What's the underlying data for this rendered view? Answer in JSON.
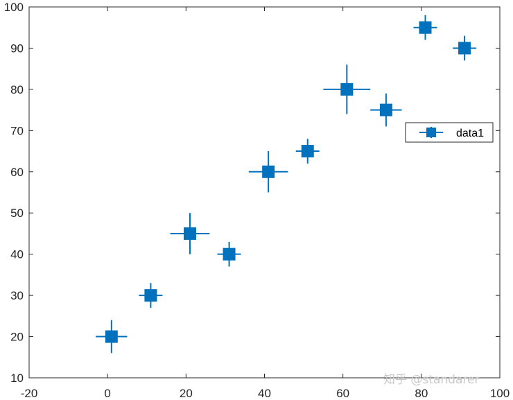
{
  "chart_data": {
    "type": "scatter",
    "xlim": [
      -20,
      100
    ],
    "ylim": [
      10,
      100
    ],
    "xticks": [
      -20,
      0,
      20,
      40,
      60,
      80,
      100
    ],
    "yticks": [
      10,
      20,
      30,
      40,
      50,
      60,
      70,
      80,
      90,
      100
    ],
    "grid": false,
    "legend_placement": "right",
    "series": [
      {
        "name": "data1",
        "color": "#0072bd",
        "marker": "square",
        "points": [
          {
            "x": 1,
            "y": 20,
            "xerr": 4,
            "yerr": 4
          },
          {
            "x": 11,
            "y": 30,
            "xerr": 3,
            "yerr": 3
          },
          {
            "x": 21,
            "y": 45,
            "xerr": 5,
            "yerr": 5
          },
          {
            "x": 31,
            "y": 40,
            "xerr": 3,
            "yerr": 3
          },
          {
            "x": 41,
            "y": 60,
            "xerr": 5,
            "yerr": 5
          },
          {
            "x": 51,
            "y": 65,
            "xerr": 3,
            "yerr": 3
          },
          {
            "x": 61,
            "y": 80,
            "xerr": 6,
            "yerr": 6
          },
          {
            "x": 71,
            "y": 75,
            "xerr": 4,
            "yerr": 4
          },
          {
            "x": 81,
            "y": 95,
            "xerr": 3,
            "yerr": 3
          },
          {
            "x": 91,
            "y": 90,
            "xerr": 3,
            "yerr": 3
          }
        ]
      }
    ]
  },
  "watermark": "知乎 @standarer"
}
